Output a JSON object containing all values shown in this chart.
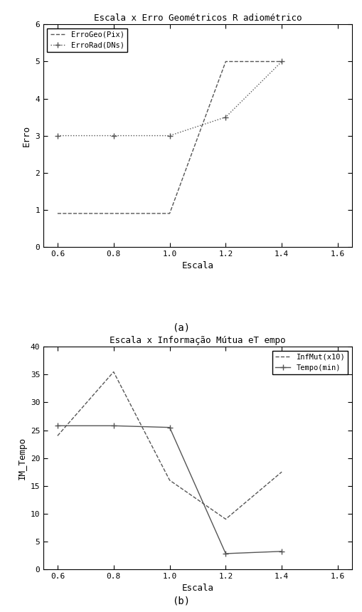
{
  "chart_a": {
    "title": "Escala x Erro Geométricos R adiométrico",
    "xlabel": "Escala",
    "ylabel": "Erro",
    "xlim": [
      0.55,
      1.65
    ],
    "ylim": [
      0,
      6
    ],
    "xticks": [
      0.6,
      0.8,
      1.0,
      1.2,
      1.4,
      1.6
    ],
    "yticks": [
      0,
      1,
      2,
      3,
      4,
      5,
      6
    ],
    "errogeo": {
      "x": [
        0.6,
        0.8,
        1.0,
        1.2,
        1.4
      ],
      "y": [
        0.9,
        0.9,
        0.9,
        5.0,
        5.0
      ],
      "label": "ErroGeo(Pix)",
      "linestyle": "--",
      "color": "#555555",
      "linewidth": 1.0
    },
    "errorad": {
      "x": [
        0.6,
        0.8,
        1.0,
        1.2,
        1.4
      ],
      "y": [
        3.0,
        3.0,
        3.0,
        3.5,
        5.0
      ],
      "label": "ErroRad(DNs)",
      "linestyle": ":",
      "marker": "+",
      "color": "#555555",
      "linewidth": 1.0
    }
  },
  "chart_b": {
    "title": "Escala x Informação Mútua eT empo",
    "xlabel": "Escala",
    "ylabel": "IM_Tempo",
    "xlim": [
      0.55,
      1.65
    ],
    "ylim": [
      0,
      40
    ],
    "xticks": [
      0.6,
      0.8,
      1.0,
      1.2,
      1.4,
      1.6
    ],
    "yticks": [
      0,
      5,
      10,
      15,
      20,
      25,
      30,
      35,
      40
    ],
    "infmut": {
      "x": [
        0.6,
        0.8,
        1.0,
        1.2,
        1.4
      ],
      "y": [
        24.0,
        35.5,
        16.0,
        9.0,
        17.5
      ],
      "label": "InfMut(x10)",
      "linestyle": "--",
      "color": "#555555",
      "linewidth": 1.0
    },
    "tempo": {
      "x": [
        0.6,
        0.8,
        1.0,
        1.2,
        1.4
      ],
      "y": [
        25.8,
        25.8,
        25.5,
        2.8,
        3.2
      ],
      "label": "Tempo(min)",
      "linestyle": "-",
      "marker": "+",
      "color": "#555555",
      "linewidth": 1.0
    }
  },
  "label_a": "(a)",
  "label_b": "(b)",
  "bg_color": "#ffffff",
  "font_family": "monospace"
}
